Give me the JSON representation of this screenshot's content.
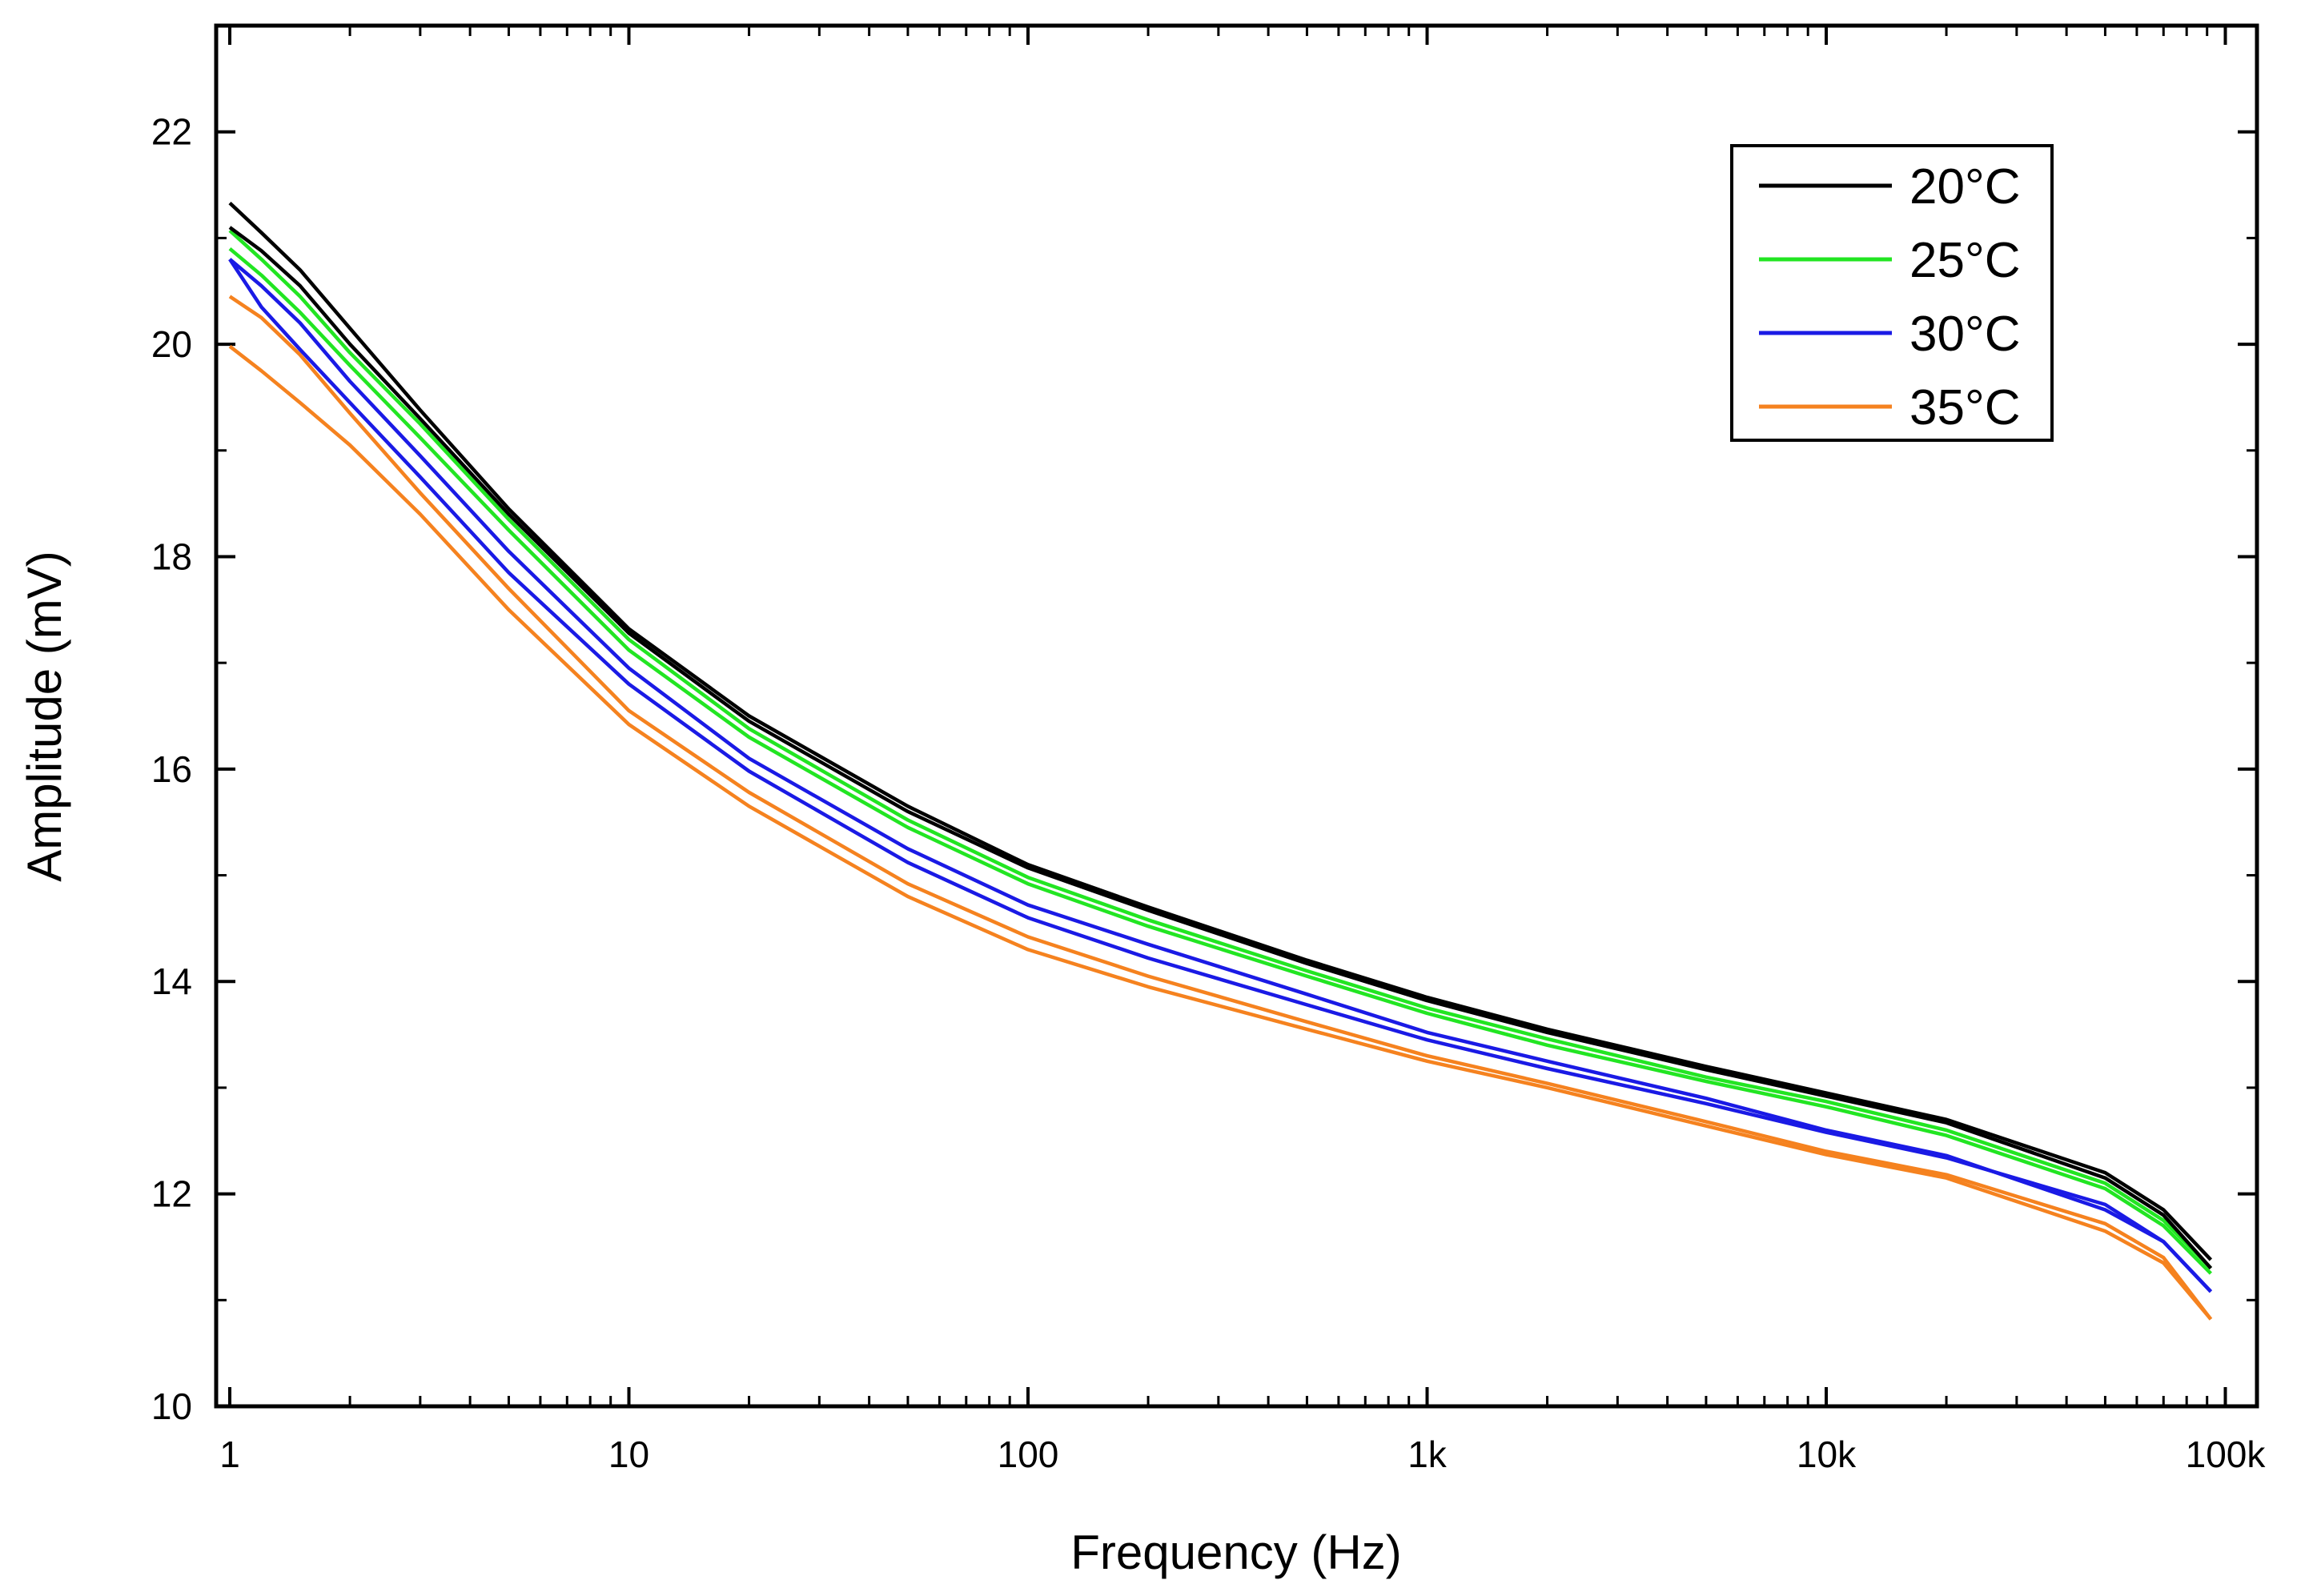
{
  "chart_data": {
    "type": "line",
    "title": "",
    "xlabel": "Frequency (Hz)",
    "ylabel": "Amplitude (mV)",
    "xscale": "log",
    "xlim": [
      0.9,
      110000
    ],
    "ylim": [
      10,
      23
    ],
    "x_ticks": [
      1,
      10,
      100,
      1000,
      10000,
      100000
    ],
    "x_tick_labels": [
      "1",
      "10",
      "100",
      "1k",
      "10k",
      "100k"
    ],
    "y_ticks": [
      10,
      12,
      14,
      16,
      18,
      20,
      22
    ],
    "y_tick_labels": [
      "10",
      "12",
      "14",
      "16",
      "18",
      "20",
      "22"
    ],
    "grid": false,
    "legend_position": "top-right",
    "legend": [
      "20°C",
      "25°C",
      "30°C",
      "35°C"
    ],
    "x": [
      1,
      1.2,
      1.5,
      2,
      3,
      5,
      10,
      20,
      50,
      100,
      200,
      500,
      1000,
      2000,
      5000,
      10000,
      20000,
      50000,
      70000,
      92000
    ],
    "series": [
      {
        "name": "20°C",
        "color": "#000000",
        "curves": [
          [
            21.33,
            21.05,
            20.7,
            20.15,
            19.38,
            18.45,
            17.32,
            16.5,
            15.65,
            15.1,
            14.7,
            14.2,
            13.85,
            13.55,
            13.2,
            12.95,
            12.7,
            12.2,
            11.85,
            11.38
          ],
          [
            21.1,
            20.88,
            20.55,
            20.0,
            19.3,
            18.4,
            17.28,
            16.45,
            15.6,
            15.07,
            14.67,
            14.17,
            13.82,
            13.52,
            13.17,
            12.92,
            12.67,
            12.15,
            11.8,
            11.3
          ]
        ]
      },
      {
        "name": "25°C",
        "color": "#22e522",
        "curves": [
          [
            21.07,
            20.8,
            20.45,
            19.92,
            19.25,
            18.35,
            17.22,
            16.38,
            15.52,
            14.98,
            14.58,
            14.1,
            13.75,
            13.46,
            13.1,
            12.87,
            12.6,
            12.1,
            11.75,
            11.3
          ],
          [
            20.9,
            20.65,
            20.3,
            19.8,
            19.12,
            18.25,
            17.12,
            16.3,
            15.45,
            14.92,
            14.52,
            14.05,
            13.7,
            13.4,
            13.06,
            12.82,
            12.55,
            12.05,
            11.7,
            11.25
          ]
        ]
      },
      {
        "name": "30°C",
        "color": "#1a1ae5",
        "curves": [
          [
            20.8,
            20.55,
            20.2,
            19.65,
            18.95,
            18.05,
            16.95,
            16.1,
            15.25,
            14.72,
            14.35,
            13.88,
            13.52,
            13.25,
            12.9,
            12.6,
            12.36,
            11.85,
            11.55,
            11.08
          ],
          [
            20.8,
            20.35,
            19.95,
            19.45,
            18.75,
            17.85,
            16.8,
            15.98,
            15.12,
            14.6,
            14.22,
            13.78,
            13.45,
            13.18,
            12.85,
            12.58,
            12.34,
            11.9,
            11.55,
            11.08
          ]
        ]
      },
      {
        "name": "35°C",
        "color": "#f5821f",
        "curves": [
          [
            20.45,
            20.25,
            19.9,
            19.35,
            18.6,
            17.7,
            16.55,
            15.78,
            14.92,
            14.42,
            14.05,
            13.62,
            13.3,
            13.04,
            12.68,
            12.4,
            12.18,
            11.72,
            11.4,
            10.82
          ],
          [
            19.98,
            19.75,
            19.45,
            19.05,
            18.4,
            17.5,
            16.42,
            15.65,
            14.8,
            14.3,
            13.95,
            13.55,
            13.25,
            13.0,
            12.64,
            12.37,
            12.15,
            11.65,
            11.35,
            10.82
          ]
        ]
      }
    ]
  }
}
